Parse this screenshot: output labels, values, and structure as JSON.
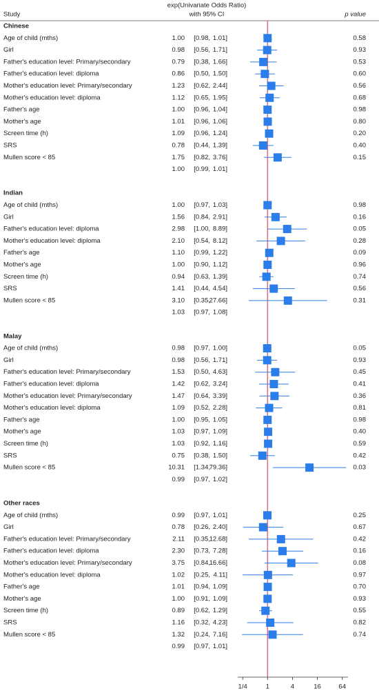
{
  "chart_data": {
    "type": "forest",
    "header": {
      "estimate_title": "exp(Univariate Odds Ratio)",
      "estimate_subtitle": "with 95% CI",
      "study": "Study",
      "p": "p value"
    },
    "xscale": "log",
    "xlim": [
      0.19,
      88
    ],
    "xticks": [
      {
        "value": 0.25,
        "label": "1/4"
      },
      1,
      4,
      16,
      64
    ],
    "reference_line": 1,
    "reference_color": "#e06b7d",
    "box_color": "#2b7de9",
    "groups": [
      {
        "name": "Chinese",
        "rows": [
          {
            "study": "Age of child (mths)",
            "or": 1.0,
            "or_label": "1.00",
            "lo": 0.98,
            "lo_label": "[0.98,",
            "hi": 1.01,
            "hi_label": "1.01]",
            "p": "0.58"
          },
          {
            "study": "Girl",
            "or": 0.98,
            "or_label": "0.98",
            "lo": 0.56,
            "lo_label": "[0.56,",
            "hi": 1.71,
            "hi_label": "1.71]",
            "p": "0.93"
          },
          {
            "study": "Father's education level: Primary/secondary",
            "or": 0.79,
            "or_label": "0.79",
            "lo": 0.38,
            "lo_label": "[0.38,",
            "hi": 1.66,
            "hi_label": "1.66]",
            "p": "0.53"
          },
          {
            "study": "Father's education level: diploma",
            "or": 0.86,
            "or_label": "0.86",
            "lo": 0.5,
            "lo_label": "[0.50,",
            "hi": 1.5,
            "hi_label": "1.50]",
            "p": "0.60"
          },
          {
            "study": "Mother's education level: Primary/secondary",
            "or": 1.23,
            "or_label": "1.23",
            "lo": 0.62,
            "lo_label": "[0.62,",
            "hi": 2.44,
            "hi_label": "2.44]",
            "p": "0.56"
          },
          {
            "study": "Mother's education level: diploma",
            "or": 1.12,
            "or_label": "1.12",
            "lo": 0.65,
            "lo_label": "[0.65,",
            "hi": 1.95,
            "hi_label": "1.95]",
            "p": "0.68"
          },
          {
            "study": "Father's age",
            "or": 1.0,
            "or_label": "1.00",
            "lo": 0.96,
            "lo_label": "[0.96,",
            "hi": 1.04,
            "hi_label": "1.04]",
            "p": "0.98"
          },
          {
            "study": "Mother's age",
            "or": 1.01,
            "or_label": "1.01",
            "lo": 0.96,
            "lo_label": "[0.96,",
            "hi": 1.06,
            "hi_label": "1.06]",
            "p": "0.80"
          },
          {
            "study": "Screen time (h)",
            "or": 1.09,
            "or_label": "1.09",
            "lo": 0.96,
            "lo_label": "[0.96,",
            "hi": 1.24,
            "hi_label": "1.24]",
            "p": "0.20"
          },
          {
            "study": "SRS",
            "or": 0.78,
            "or_label": "0.78",
            "lo": 0.44,
            "lo_label": "[0.44,",
            "hi": 1.39,
            "hi_label": "1.39]",
            "p": "0.40"
          },
          {
            "study": "Mullen score < 85",
            "or": 1.75,
            "or_label": "1.75",
            "lo": 0.82,
            "lo_label": "[0.82,",
            "hi": 3.76,
            "hi_label": "3.76]",
            "p": "0.15"
          }
        ],
        "overall": {
          "or": 1.0,
          "or_label": "1.00",
          "lo": 0.99,
          "lo_label": "[0.99,",
          "hi": 1.01,
          "hi_label": "1.01]"
        }
      },
      {
        "name": "Indian",
        "rows": [
          {
            "study": "Age of child (mths)",
            "or": 1.0,
            "or_label": "1.00",
            "lo": 0.97,
            "lo_label": "[0.97,",
            "hi": 1.03,
            "hi_label": "1.03]",
            "p": "0.98"
          },
          {
            "study": "Girl",
            "or": 1.56,
            "or_label": "1.56",
            "lo": 0.84,
            "lo_label": "[0.84,",
            "hi": 2.91,
            "hi_label": "2.91]",
            "p": "0.16"
          },
          {
            "study": "Father's education level: diploma",
            "or": 2.98,
            "or_label": "2.98",
            "lo": 1.0,
            "lo_label": "[1.00,",
            "hi": 8.89,
            "hi_label": "8.89]",
            "p": "0.05"
          },
          {
            "study": "Mother's education level: diploma",
            "or": 2.1,
            "or_label": "2.10",
            "lo": 0.54,
            "lo_label": "[0.54,",
            "hi": 8.12,
            "hi_label": "8.12]",
            "p": "0.28"
          },
          {
            "study": "Father's age",
            "or": 1.1,
            "or_label": "1.10",
            "lo": 0.99,
            "lo_label": "[0.99,",
            "hi": 1.22,
            "hi_label": "1.22]",
            "p": "0.09"
          },
          {
            "study": "Mother's age",
            "or": 1.0,
            "or_label": "1.00",
            "lo": 0.9,
            "lo_label": "[0.90,",
            "hi": 1.12,
            "hi_label": "1.12]",
            "p": "0.96"
          },
          {
            "study": "Screen time (h)",
            "or": 0.94,
            "or_label": "0.94",
            "lo": 0.63,
            "lo_label": "[0.63,",
            "hi": 1.39,
            "hi_label": "1.39]",
            "p": "0.74"
          },
          {
            "study": "SRS",
            "or": 1.41,
            "or_label": "1.41",
            "lo": 0.44,
            "lo_label": "[0.44,",
            "hi": 4.54,
            "hi_label": "4.54]",
            "p": "0.56"
          },
          {
            "study": "Mullen score < 85",
            "or": 3.1,
            "or_label": "3.10",
            "lo": 0.35,
            "lo_label": "[0.35,",
            "hi": 27.66,
            "hi_label": "27.66]",
            "p": "0.31"
          }
        ],
        "overall": {
          "or": 1.03,
          "or_label": "1.03",
          "lo": 0.97,
          "lo_label": "[0.97,",
          "hi": 1.08,
          "hi_label": "1.08]"
        }
      },
      {
        "name": "Malay",
        "rows": [
          {
            "study": "Age of child (mths)",
            "or": 0.98,
            "or_label": "0.98",
            "lo": 0.97,
            "lo_label": "[0.97,",
            "hi": 1.0,
            "hi_label": "1.00]",
            "p": "0.05"
          },
          {
            "study": "Girl",
            "or": 0.98,
            "or_label": "0.98",
            "lo": 0.56,
            "lo_label": "[0.56,",
            "hi": 1.71,
            "hi_label": "1.71]",
            "p": "0.93"
          },
          {
            "study": "Father's education level: Primary/secondary",
            "or": 1.53,
            "or_label": "1.53",
            "lo": 0.5,
            "lo_label": "[0.50,",
            "hi": 4.63,
            "hi_label": "4.63]",
            "p": "0.45"
          },
          {
            "study": "Father's education level: diploma",
            "or": 1.42,
            "or_label": "1.42",
            "lo": 0.62,
            "lo_label": "[0.62,",
            "hi": 3.24,
            "hi_label": "3.24]",
            "p": "0.41"
          },
          {
            "study": "Mother's education level: Primary/secondary",
            "or": 1.47,
            "or_label": "1.47",
            "lo": 0.64,
            "lo_label": "[0.64,",
            "hi": 3.39,
            "hi_label": "3.39]",
            "p": "0.36"
          },
          {
            "study": "Mother's education level: diploma",
            "or": 1.09,
            "or_label": "1.09",
            "lo": 0.52,
            "lo_label": "[0.52,",
            "hi": 2.28,
            "hi_label": "2.28]",
            "p": "0.81"
          },
          {
            "study": "Father's age",
            "or": 1.0,
            "or_label": "1.00",
            "lo": 0.95,
            "lo_label": "[0.95,",
            "hi": 1.05,
            "hi_label": "1.05]",
            "p": "0.98"
          },
          {
            "study": "Mother's age",
            "or": 1.03,
            "or_label": "1.03",
            "lo": 0.97,
            "lo_label": "[0.97,",
            "hi": 1.09,
            "hi_label": "1.09]",
            "p": "0.40"
          },
          {
            "study": "Screen time (h)",
            "or": 1.03,
            "or_label": "1.03",
            "lo": 0.92,
            "lo_label": "[0.92,",
            "hi": 1.16,
            "hi_label": "1.16]",
            "p": "0.59"
          },
          {
            "study": "SRS",
            "or": 0.75,
            "or_label": "0.75",
            "lo": 0.38,
            "lo_label": "[0.38,",
            "hi": 1.5,
            "hi_label": "1.50]",
            "p": "0.42"
          },
          {
            "study": "Mullen score < 85",
            "or": 10.31,
            "or_label": "10.31",
            "lo": 1.34,
            "lo_label": "[1.34,",
            "hi": 79.36,
            "hi_label": "79.36]",
            "p": "0.03"
          }
        ],
        "overall": {
          "or": 0.99,
          "or_label": "0.99",
          "lo": 0.97,
          "lo_label": "[0.97,",
          "hi": 1.02,
          "hi_label": "1.02]"
        }
      },
      {
        "name": "Other races",
        "rows": [
          {
            "study": "Age of child (mths)",
            "or": 0.99,
            "or_label": "0.99",
            "lo": 0.97,
            "lo_label": "[0.97,",
            "hi": 1.01,
            "hi_label": "1.01]",
            "p": "0.25"
          },
          {
            "study": "Girl",
            "or": 0.78,
            "or_label": "0.78",
            "lo": 0.26,
            "lo_label": "[0.26,",
            "hi": 2.4,
            "hi_label": "2.40]",
            "p": "0.67"
          },
          {
            "study": "Father's education level: Primary/secondary",
            "or": 2.11,
            "or_label": "2.11",
            "lo": 0.35,
            "lo_label": "[0.35,",
            "hi": 12.68,
            "hi_label": "12.68]",
            "p": "0.42"
          },
          {
            "study": "Father's education level: diploma",
            "or": 2.3,
            "or_label": "2.30",
            "lo": 0.73,
            "lo_label": "[0.73,",
            "hi": 7.28,
            "hi_label": "7.28]",
            "p": "0.16"
          },
          {
            "study": "Mother's education level: Primary/secondary",
            "or": 3.75,
            "or_label": "3.75",
            "lo": 0.84,
            "lo_label": "[0.84,",
            "hi": 16.66,
            "hi_label": "16.66]",
            "p": "0.08"
          },
          {
            "study": "Mother's education level: diploma",
            "or": 1.02,
            "or_label": "1.02",
            "lo": 0.25,
            "lo_label": "[0.25,",
            "hi": 4.11,
            "hi_label": "4.11]",
            "p": "0.97"
          },
          {
            "study": "Father's age",
            "or": 1.01,
            "or_label": "1.01",
            "lo": 0.94,
            "lo_label": "[0.94,",
            "hi": 1.09,
            "hi_label": "1.09]",
            "p": "0.70"
          },
          {
            "study": "Mother's age",
            "or": 1.0,
            "or_label": "1.00",
            "lo": 0.91,
            "lo_label": "[0.91,",
            "hi": 1.09,
            "hi_label": "1.09]",
            "p": "0.93"
          },
          {
            "study": "Screen time (h)",
            "or": 0.89,
            "or_label": "0.89",
            "lo": 0.62,
            "lo_label": "[0.62,",
            "hi": 1.29,
            "hi_label": "1.29]",
            "p": "0.55"
          },
          {
            "study": "SRS",
            "or": 1.16,
            "or_label": "1.16",
            "lo": 0.32,
            "lo_label": "[0.32,",
            "hi": 4.23,
            "hi_label": "4.23]",
            "p": "0.82"
          },
          {
            "study": "Mullen score < 85",
            "or": 1.32,
            "or_label": "1.32",
            "lo": 0.24,
            "lo_label": "[0.24,",
            "hi": 7.16,
            "hi_label": "7.16]",
            "p": "0.74"
          }
        ],
        "overall": {
          "or": 0.99,
          "or_label": "0.99",
          "lo": 0.97,
          "lo_label": "[0.97,",
          "hi": 1.01,
          "hi_label": "1.01]"
        }
      }
    ]
  }
}
